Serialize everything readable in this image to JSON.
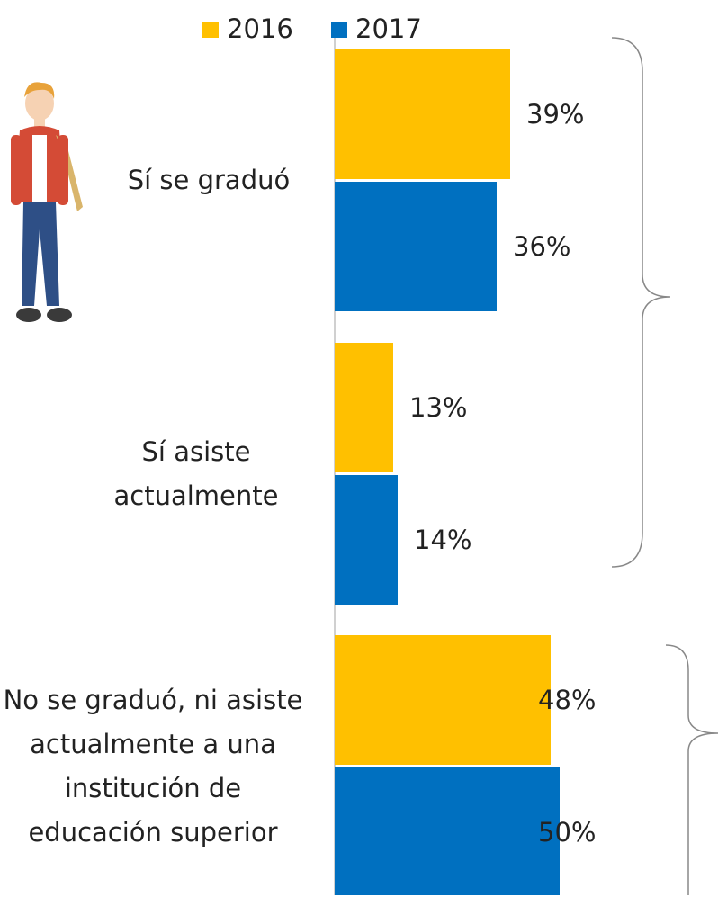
{
  "chart_data": {
    "type": "bar",
    "categories": [
      "Sí se graduó",
      "Sí asiste actualmente",
      "No se graduó, ni asiste actualmente a una institución de educación superior"
    ],
    "series": [
      {
        "name": "2016",
        "color": "#FFC000",
        "values": [
          39,
          13,
          48
        ],
        "value_labels": [
          "39%",
          "13%",
          "48%"
        ]
      },
      {
        "name": "2017",
        "color": "#0070C0",
        "values": [
          36,
          14,
          50
        ],
        "value_labels": [
          "36%",
          "14%",
          "50%"
        ]
      }
    ]
  }
}
